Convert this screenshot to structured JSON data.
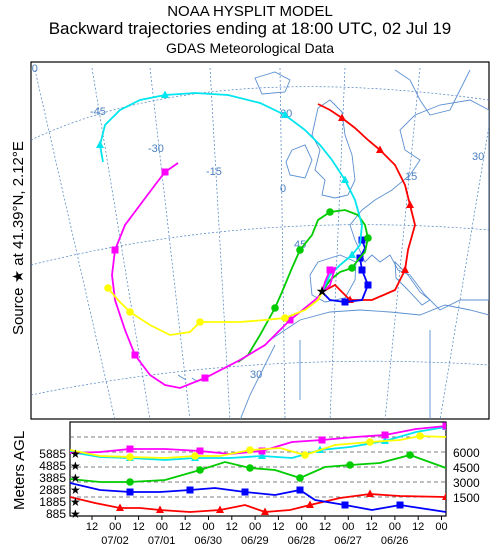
{
  "header": {
    "line1": "NOAA HYSPLIT MODEL",
    "line2": "Backward trajectories ending at 18:00 UTC, 02 Jul 19",
    "line3": "GDAS Meteorological Data"
  },
  "source_label": "Source ★ at  41.39°N,  2.12°E",
  "map": {
    "longitude_labels": [
      "-60",
      "-45",
      "-30",
      "-15",
      "0",
      "15",
      "30"
    ],
    "latitude_labels": [
      "60",
      "45",
      "30"
    ]
  },
  "height_panel": {
    "ylabel": "Meters AGL",
    "left_ticks": [
      "5885",
      "4885",
      "3885",
      "2885",
      "1885",
      "885"
    ],
    "right_ticks": [
      "6000",
      "4500",
      "3000",
      "1500"
    ],
    "hour_ticks": [
      "12",
      "00",
      "12",
      "00",
      "12",
      "00",
      "12",
      "00",
      "12",
      "00",
      "12",
      "00",
      "12",
      "00",
      "12",
      "00"
    ],
    "date_ticks": [
      "07/02",
      "07/01",
      "06/30",
      "06/29",
      "06/28",
      "06/27",
      "06/26"
    ]
  },
  "trajectories": [
    {
      "color": "#ff0000",
      "marker": "triangle"
    },
    {
      "color": "#0000ff",
      "marker": "square"
    },
    {
      "color": "#00cc00",
      "marker": "circle"
    },
    {
      "color": "#00e5ee",
      "marker": "triangle"
    },
    {
      "color": "#ff00ff",
      "marker": "square"
    },
    {
      "color": "#ffff00",
      "marker": "circle"
    }
  ]
}
